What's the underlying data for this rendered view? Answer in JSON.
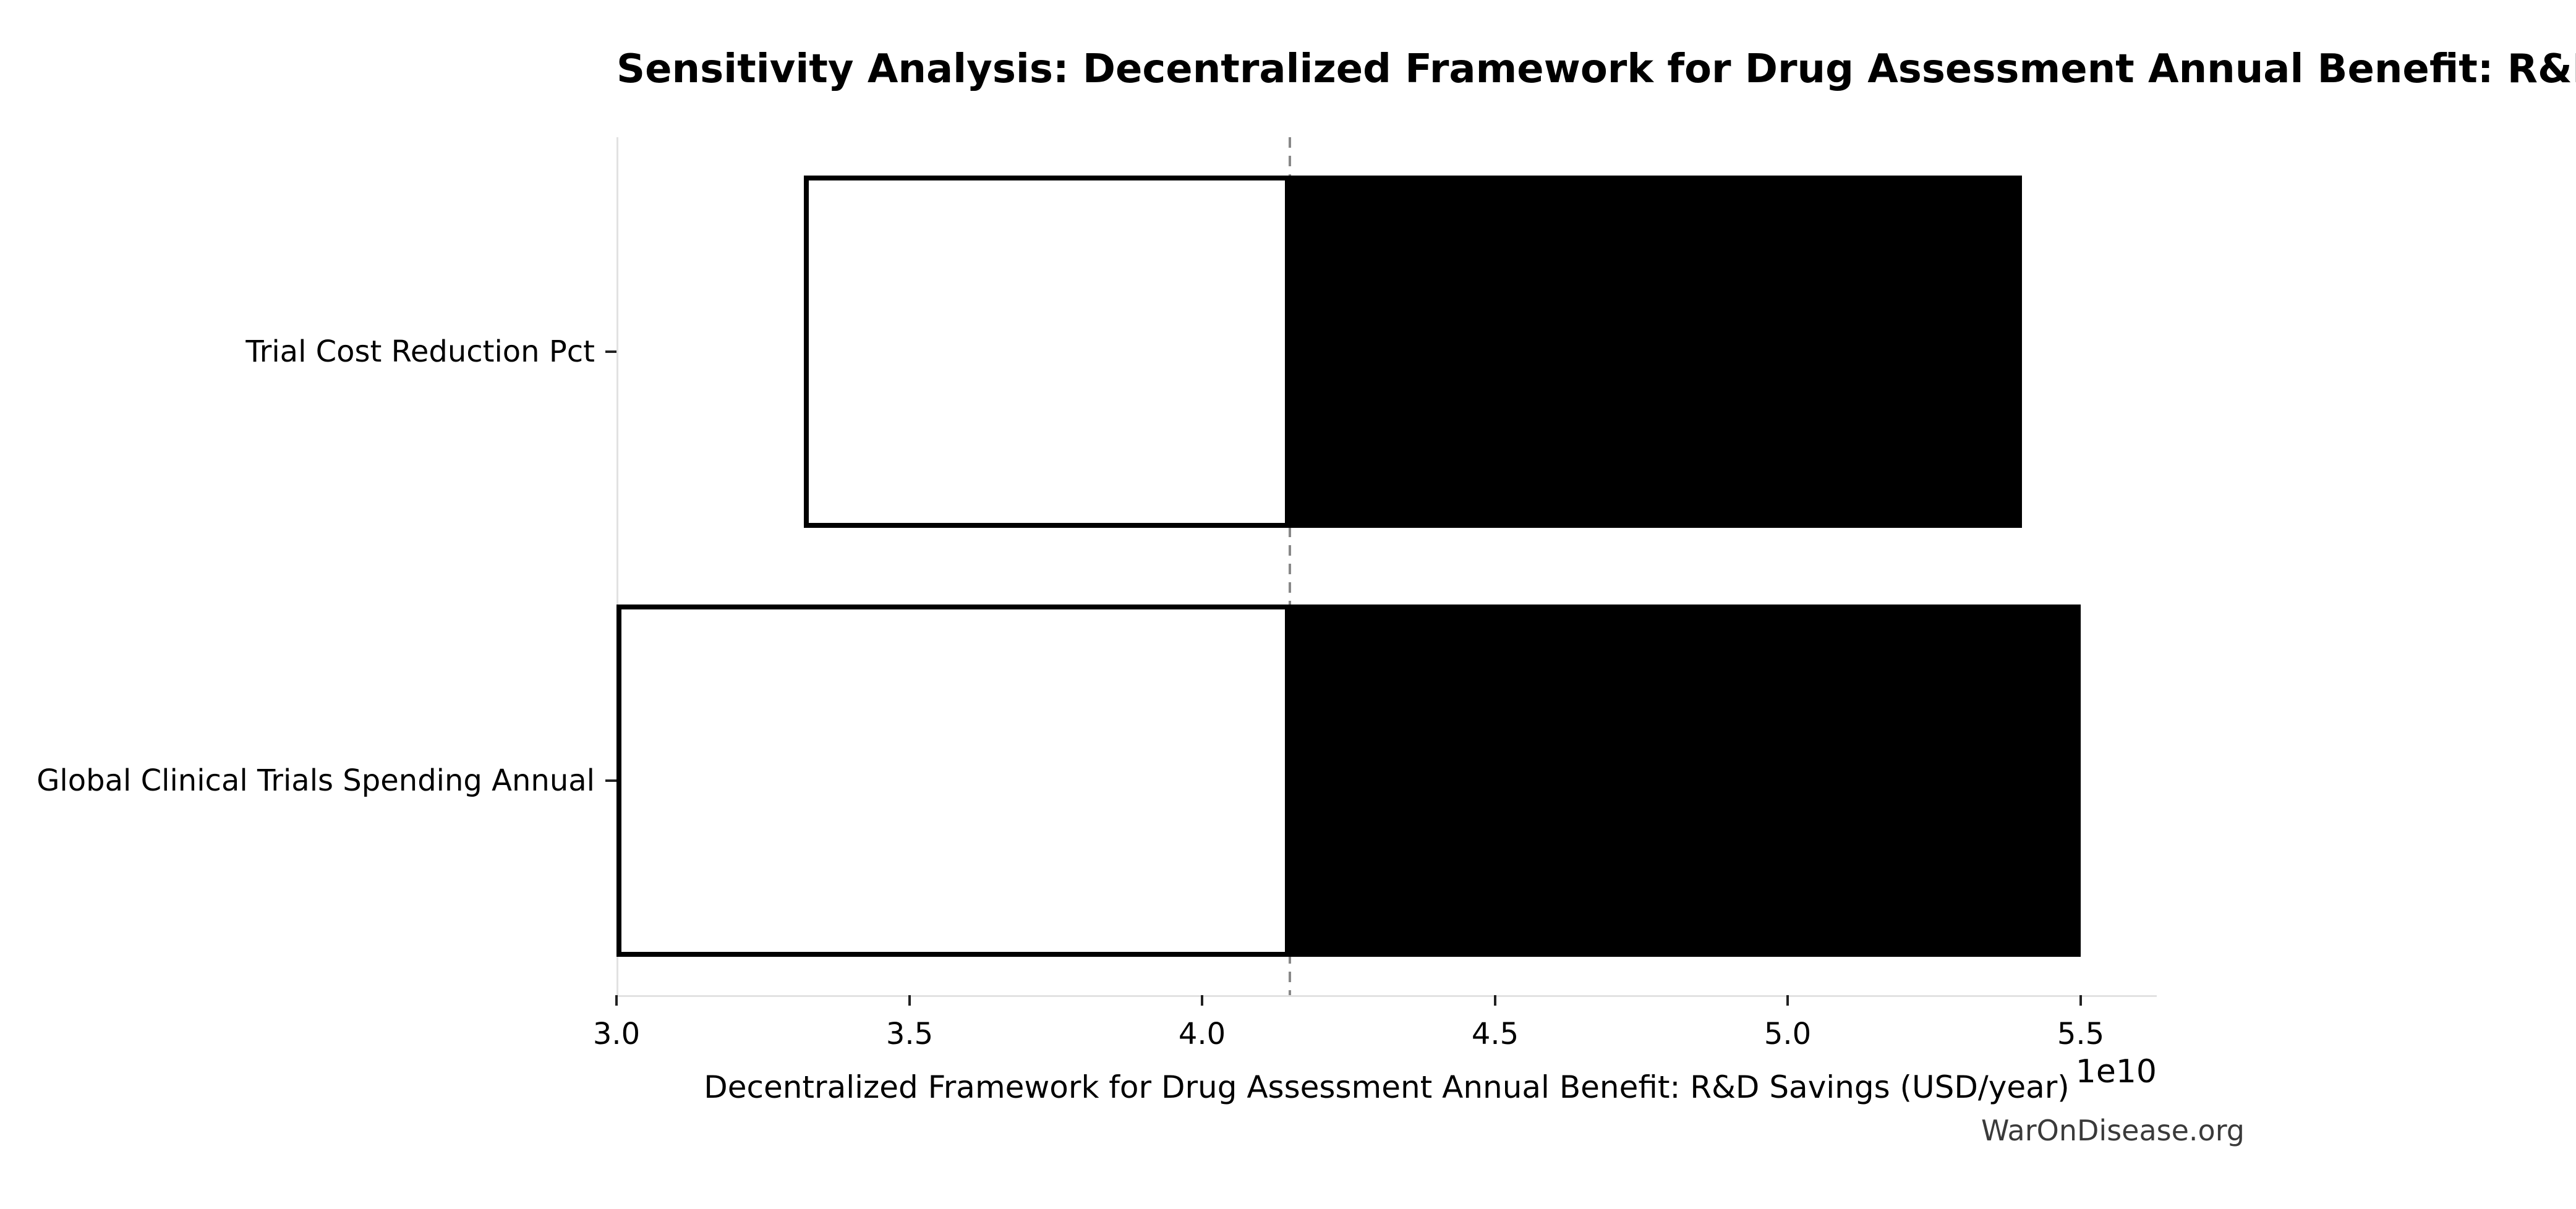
{
  "chart_data": {
    "type": "bar",
    "variant": "tornado-sensitivity",
    "orientation": "horizontal",
    "title": "Sensitivity Analysis: Decentralized Framework for Drug Assessment Annual Benefit: R&D Savings",
    "xlabel": "Decentralized Framework for Drug Assessment Annual Benefit: R&D Savings (USD/year)",
    "axis_offset_label": "1e10",
    "watermark": "WarOnDisease.org",
    "grid": false,
    "legend_position": "none",
    "xlim": [
      30000000000,
      56300000000
    ],
    "baseline": 41500000000,
    "xticks": [
      {
        "value": 30000000000,
        "label": "3.0"
      },
      {
        "value": 35000000000,
        "label": "3.5"
      },
      {
        "value": 40000000000,
        "label": "4.0"
      },
      {
        "value": 45000000000,
        "label": "4.5"
      },
      {
        "value": 50000000000,
        "label": "5.0"
      },
      {
        "value": 55000000000,
        "label": "5.5"
      }
    ],
    "categories": [
      "Trial Cost Reduction Pct",
      "Global Clinical Trials Spending Annual"
    ],
    "series": [
      {
        "name": "low_value",
        "color": "#ffffff",
        "values": [
          33200000000,
          30000000000
        ]
      },
      {
        "name": "high_value",
        "color": "#000000",
        "values": [
          54000000000,
          55000000000
        ]
      }
    ],
    "colors": {
      "bar_edge": "#000000",
      "baseline_line": "#888888",
      "spine": "#e2e2e2",
      "tick_mark": "#222222",
      "text": "#000000",
      "watermark_text": "#3a3a3a",
      "background": "#ffffff"
    }
  }
}
